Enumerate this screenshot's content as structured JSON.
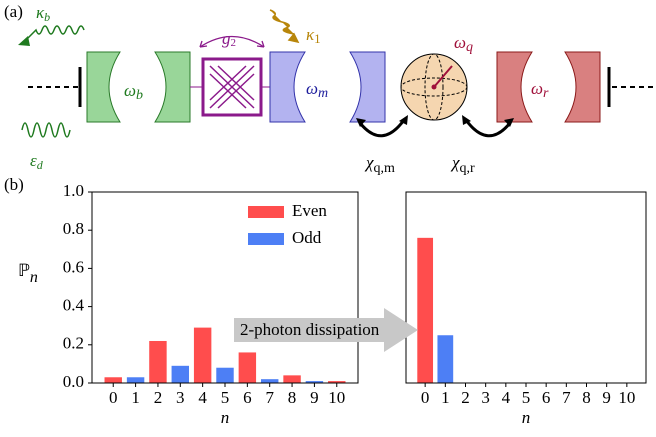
{
  "panel_a": {
    "label": "(a)",
    "kappa_b": {
      "symbol": "κ",
      "sub": "b"
    },
    "eps_d": {
      "symbol": "ε",
      "sub": "d"
    },
    "omega_b": {
      "symbol": "ω",
      "sub": "b"
    },
    "g2": {
      "symbol": "g",
      "sub": "2"
    },
    "kappa_1": {
      "symbol": "κ",
      "sub": "1"
    },
    "omega_m": {
      "symbol": "ω",
      "sub": "m"
    },
    "omega_q": {
      "symbol": "ω",
      "sub": "q"
    },
    "omega_r": {
      "symbol": "ω",
      "sub": "r"
    },
    "chi_qm": {
      "symbol": "χ",
      "sub": "q,m"
    },
    "chi_qr": {
      "symbol": "χ",
      "sub": "q,r"
    }
  },
  "panel_b": {
    "label": "(b)",
    "arrow_label": "2-photon dissipation"
  },
  "chart_data": [
    {
      "type": "bar",
      "categories": [
        "0",
        "1",
        "2",
        "3",
        "4",
        "5",
        "6",
        "7",
        "8",
        "9",
        "10"
      ],
      "series": [
        {
          "name": "Even",
          "color": "#ff4d4d",
          "values": [
            0.03,
            null,
            0.22,
            null,
            0.29,
            null,
            0.16,
            null,
            0.04,
            null,
            0.01
          ]
        },
        {
          "name": "Odd",
          "color": "#4d7ff5",
          "values": [
            null,
            0.03,
            null,
            0.09,
            null,
            0.08,
            null,
            0.02,
            null,
            0.01,
            null
          ]
        }
      ],
      "xlabel": "n",
      "ylabel": "ℙ",
      "ylabel_sub": "n",
      "ylim": [
        0,
        1
      ],
      "yticks": [
        {
          "value": 0,
          "label": "0.0"
        },
        0.2,
        0.4,
        0.6,
        0.8,
        {
          "value": 1,
          "label": "1.0"
        }
      ],
      "legend": "upper right"
    },
    {
      "type": "bar",
      "categories": [
        "0",
        "1",
        "2",
        "3",
        "4",
        "5",
        "6",
        "7",
        "8",
        "9",
        "10"
      ],
      "series": [
        {
          "name": "Even",
          "color": "#ff4d4d",
          "values": [
            0.76,
            null,
            0,
            null,
            0,
            null,
            0,
            null,
            0,
            null,
            0
          ]
        },
        {
          "name": "Odd",
          "color": "#4d7ff5",
          "values": [
            null,
            0.25,
            null,
            0,
            null,
            0,
            null,
            0,
            null,
            0,
            null
          ]
        }
      ],
      "xlabel": "n",
      "ylim": [
        0,
        1
      ]
    }
  ]
}
